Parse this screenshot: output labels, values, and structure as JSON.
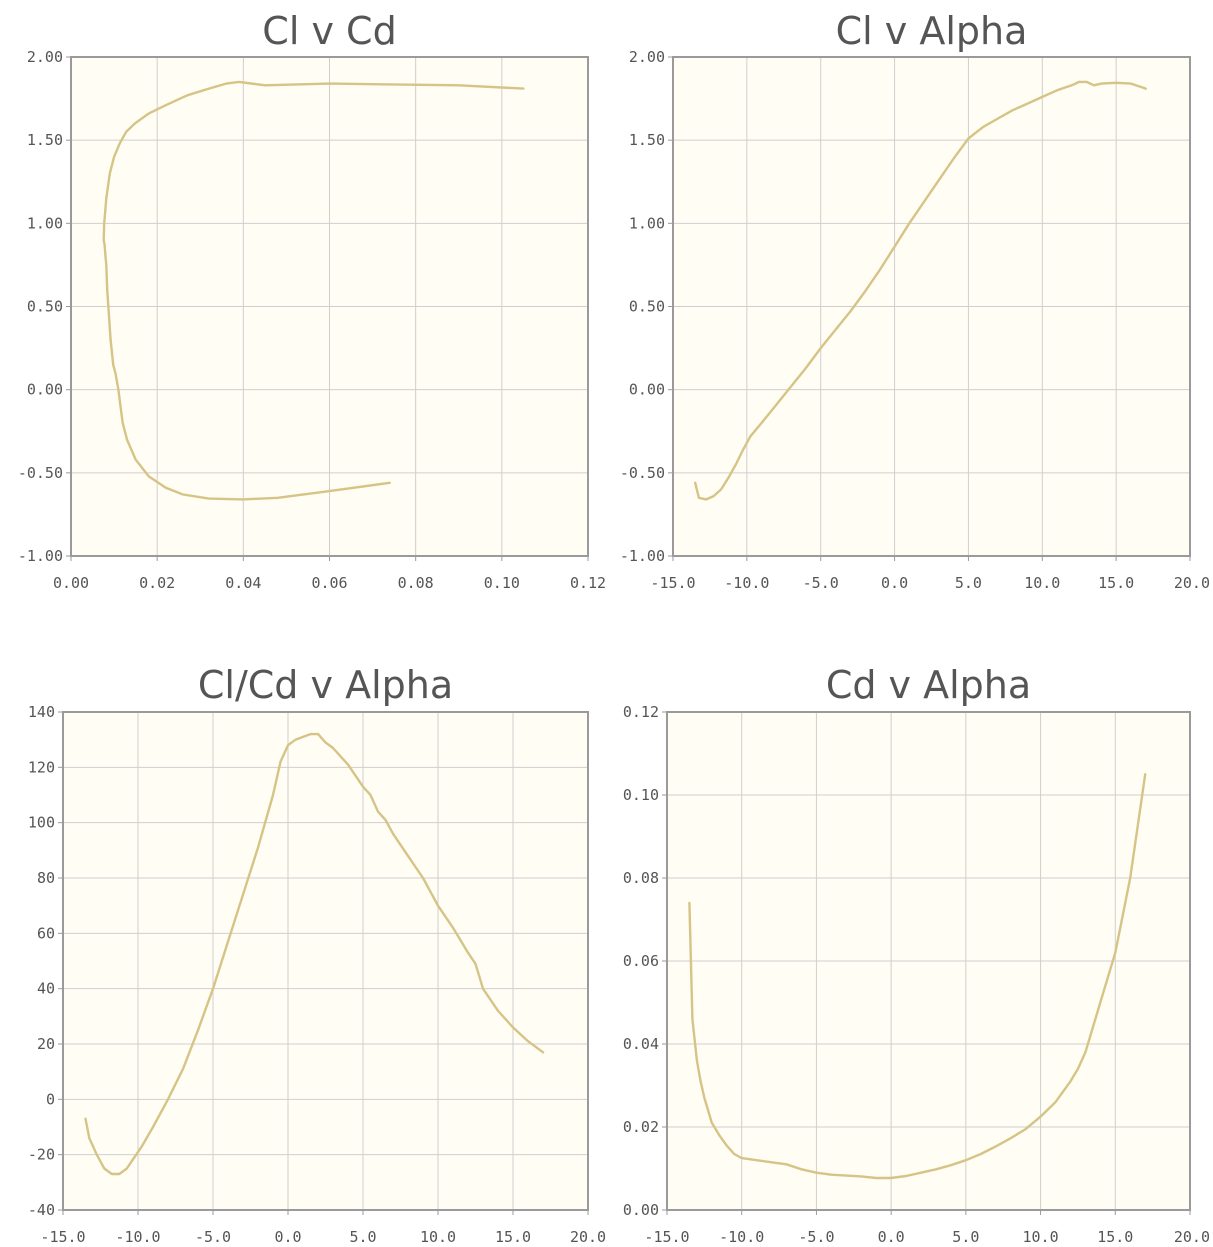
{
  "palette": {
    "series": "#d6c486",
    "plot_bg": "#fffdf4"
  },
  "chart_data": [
    {
      "type": "line",
      "title": "Cl v Cd",
      "xlabel": "",
      "ylabel": "",
      "xlim": [
        0,
        0.12
      ],
      "ylim": [
        -1.0,
        2.0
      ],
      "x_ticks": [
        "0.00",
        "0.02",
        "0.04",
        "0.06",
        "0.08",
        "0.10",
        "0.12"
      ],
      "y_ticks": [
        "2.00",
        "1.50",
        "1.00",
        "0.50",
        "0.00",
        "-0.50",
        "-1.00"
      ],
      "grid": true,
      "legend": "none",
      "series": [
        {
          "x": [
            0.074,
            0.06,
            0.048,
            0.04,
            0.032,
            0.026,
            0.022,
            0.018,
            0.015,
            0.013,
            0.012,
            0.0115,
            0.011,
            0.0103,
            0.0098,
            0.0092,
            0.0088,
            0.0084,
            0.0082,
            0.008,
            0.0078,
            0.0076,
            0.0077,
            0.0082,
            0.009,
            0.01,
            0.0113,
            0.0128,
            0.0148,
            0.018,
            0.022,
            0.027,
            0.032,
            0.036,
            0.039,
            0.045,
            0.06,
            0.09,
            0.105
          ],
          "y": [
            -0.56,
            -0.61,
            -0.65,
            -0.66,
            -0.655,
            -0.63,
            -0.59,
            -0.52,
            -0.42,
            -0.3,
            -0.2,
            -0.1,
            0.0,
            0.1,
            0.15,
            0.3,
            0.45,
            0.6,
            0.75,
            0.8,
            0.87,
            0.9,
            1.0,
            1.15,
            1.3,
            1.4,
            1.48,
            1.55,
            1.6,
            1.66,
            1.71,
            1.77,
            1.81,
            1.84,
            1.85,
            1.83,
            1.84,
            1.83,
            1.81
          ]
        }
      ]
    },
    {
      "type": "line",
      "title": "Cl v Alpha",
      "xlabel": "",
      "ylabel": "",
      "xlim": [
        -15,
        20
      ],
      "ylim": [
        -1.0,
        2.0
      ],
      "x_ticks": [
        "-15.0",
        "-10.0",
        "-5.0",
        "0.0",
        "5.0",
        "10.0",
        "15.0",
        "20.0"
      ],
      "y_ticks": [
        "2.00",
        "1.50",
        "1.00",
        "0.50",
        "0.00",
        "-0.50",
        "-1.00"
      ],
      "grid": true,
      "legend": "none",
      "series": [
        {
          "x": [
            -13.5,
            -13.25,
            -12.75,
            -12.25,
            -11.75,
            -11.25,
            -10.75,
            -10.25,
            -9.75,
            -9.0,
            -8.0,
            -7.0,
            -6.0,
            -5.0,
            -4.0,
            -3.0,
            -2.0,
            -1.0,
            0.0,
            1.0,
            2.0,
            3.0,
            4.0,
            5.0,
            6.0,
            7.0,
            8.0,
            9.0,
            10.0,
            11.0,
            12.0,
            12.5,
            13.0,
            13.5,
            14.0,
            15.0,
            16.0,
            17.0
          ],
          "y": [
            -0.56,
            -0.65,
            -0.66,
            -0.64,
            -0.6,
            -0.53,
            -0.45,
            -0.36,
            -0.28,
            -0.2,
            -0.09,
            0.02,
            0.13,
            0.25,
            0.36,
            0.47,
            0.59,
            0.72,
            0.86,
            1.0,
            1.13,
            1.26,
            1.39,
            1.51,
            1.58,
            1.63,
            1.68,
            1.72,
            1.76,
            1.8,
            1.83,
            1.85,
            1.85,
            1.83,
            1.84,
            1.845,
            1.84,
            1.81
          ]
        }
      ]
    },
    {
      "type": "line",
      "title": "Cl/Cd v Alpha",
      "xlabel": "",
      "ylabel": "",
      "xlim": [
        -15,
        20
      ],
      "ylim": [
        -40,
        140
      ],
      "x_ticks": [
        "-15.0",
        "-10.0",
        "-5.0",
        "0.0",
        "5.0",
        "10.0",
        "15.0",
        "20.0"
      ],
      "y_ticks": [
        "140",
        "120",
        "100",
        "80",
        "60",
        "40",
        "20",
        "0",
        "-20",
        "-40"
      ],
      "grid": true,
      "legend": "none",
      "series": [
        {
          "x": [
            -13.5,
            -13.25,
            -12.75,
            -12.25,
            -11.75,
            -11.25,
            -10.75,
            -10.25,
            -9.75,
            -9.0,
            -8.0,
            -7.0,
            -6.0,
            -5.0,
            -4.0,
            -3.0,
            -2.0,
            -1.0,
            -0.5,
            0.0,
            0.5,
            1.0,
            1.5,
            2.0,
            2.5,
            3.0,
            4.0,
            5.0,
            5.5,
            6.0,
            6.5,
            7.0,
            8.0,
            9.0,
            10.0,
            11.0,
            12.0,
            12.5,
            13.0,
            14.0,
            15.0,
            16.0,
            17.0
          ],
          "y": [
            -7,
            -14,
            -20,
            -25,
            -27,
            -27,
            -25,
            -21,
            -17,
            -10,
            0,
            11,
            25,
            40,
            57,
            74,
            91,
            110,
            122,
            128,
            130,
            131,
            132,
            132,
            129,
            127,
            121,
            113,
            110,
            104,
            101,
            96,
            88,
            80,
            70,
            62,
            53,
            49,
            40,
            32,
            26,
            21,
            17
          ]
        }
      ]
    },
    {
      "type": "line",
      "title": "Cd v Alpha",
      "xlabel": "",
      "ylabel": "",
      "xlim": [
        -15,
        20
      ],
      "ylim": [
        0,
        0.12
      ],
      "x_ticks": [
        "-15.0",
        "-10.0",
        "-5.0",
        "0.0",
        "5.0",
        "10.0",
        "15.0",
        "20.0"
      ],
      "y_ticks": [
        "0.12",
        "0.10",
        "0.08",
        "0.06",
        "0.04",
        "0.02",
        "0.00"
      ],
      "grid": true,
      "legend": "none",
      "series": [
        {
          "x": [
            -13.5,
            -13.3,
            -13.0,
            -12.75,
            -12.5,
            -12.25,
            -12.0,
            -11.5,
            -11.0,
            -10.5,
            -10.0,
            -9.0,
            -8.0,
            -7.0,
            -6.0,
            -5.0,
            -4.0,
            -3.0,
            -2.0,
            -1.0,
            0.0,
            1.0,
            2.0,
            3.0,
            4.0,
            5.0,
            6.0,
            7.0,
            8.0,
            9.0,
            10.0,
            11.0,
            12.0,
            12.5,
            13.0,
            14.0,
            15.0,
            16.0,
            17.0
          ],
          "y": [
            0.074,
            0.046,
            0.036,
            0.031,
            0.027,
            0.024,
            0.021,
            0.018,
            0.0155,
            0.0135,
            0.0125,
            0.012,
            0.0115,
            0.011,
            0.0098,
            0.009,
            0.0085,
            0.0083,
            0.0081,
            0.0077,
            0.0077,
            0.0082,
            0.009,
            0.0098,
            0.0108,
            0.012,
            0.0135,
            0.0153,
            0.0173,
            0.0195,
            0.0225,
            0.026,
            0.031,
            0.034,
            0.038,
            0.05,
            0.062,
            0.08,
            0.105
          ]
        }
      ]
    }
  ]
}
